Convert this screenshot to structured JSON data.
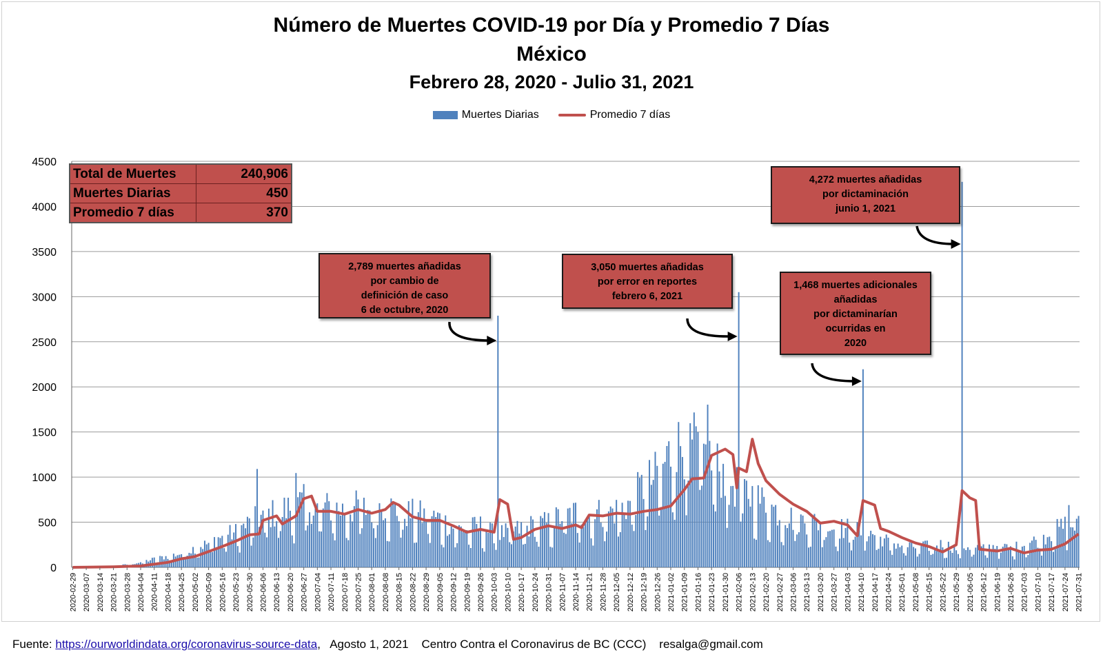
{
  "title": {
    "line1": "Número de Muertes COVID-19 por Día y Promedio 7 Días",
    "line2": "México",
    "line3": "Febrero 28, 2020 - Julio 31, 2021"
  },
  "legend": {
    "bars": "Muertes Diarias",
    "line": "Promedio 7 días"
  },
  "summary": {
    "rows": [
      {
        "label": "Total de Muertes",
        "value": "240,906"
      },
      {
        "label": "Muertes Diarias",
        "value": "450"
      },
      {
        "label": "Promedio 7 días",
        "value": "370"
      }
    ]
  },
  "annotations": {
    "oct": "2,789 muertes  añadidas\npor cambio de\ndefinición de caso\n6 de octubre, 2020",
    "feb": "3,050 muertes  añadidas\npor error en reportes\nfebrero  6, 2021",
    "apr": "1,468  muertes adicionales\nañadidas\npor dictaminarían\nocurridas en\n2020",
    "jun": "4,272  muertes añadidas\npor dictaminación\njunio 1, 2021"
  },
  "footer": {
    "prefix": "Fuente: ",
    "link": "https://ourworldindata.org/coronavirus-source-data",
    "rest": ",   Agosto 1, 2021    Centro Contra el Coronavirus de BC (CCC)    resalga@gmail.com"
  },
  "colors": {
    "bars": "#4f81bd",
    "line": "#c0504d",
    "grid": "#9a9a9a",
    "boxes": "#c0504d"
  },
  "chart_data": {
    "type": "bar",
    "title": "Número de Muertes COVID-19 por Día y Promedio 7 Días",
    "start_date": "2020-02-29",
    "end_date": "2021-07-31",
    "ylim": [
      0,
      4500
    ],
    "yticks": [
      0,
      500,
      1000,
      1500,
      2000,
      2500,
      3000,
      3500,
      4000,
      4500
    ],
    "grid": true,
    "legend_position": "top",
    "x_tick_labels": [
      "2020-02-29",
      "2020-03-07",
      "2020-03-14",
      "2020-03-21",
      "2020-03-28",
      "2020-04-04",
      "2020-04-11",
      "2020-04-18",
      "2020-04-25",
      "2020-05-02",
      "2020-05-09",
      "2020-05-16",
      "2020-05-23",
      "2020-05-30",
      "2020-06-06",
      "2020-06-13",
      "2020-06-20",
      "2020-06-27",
      "2020-07-04",
      "2020-07-11",
      "2020-07-18",
      "2020-07-25",
      "2020-08-01",
      "2020-08-08",
      "2020-08-15",
      "2020-08-22",
      "2020-08-29",
      "2020-09-05",
      "2020-09-12",
      "2020-09-19",
      "2020-09-26",
      "2020-10-03",
      "2020-10-10",
      "2020-10-17",
      "2020-10-24",
      "2020-10-31",
      "2020-11-07",
      "2020-11-14",
      "2020-11-21",
      "2020-11-28",
      "2020-12-05",
      "2020-12-12",
      "2020-12-19",
      "2020-12-26",
      "2021-01-02",
      "2021-01-09",
      "2021-01-16",
      "2021-01-23",
      "2021-01-30",
      "2021-02-06",
      "2021-02-13",
      "2021-02-20",
      "2021-02-27",
      "2021-03-06",
      "2021-03-13",
      "2021-03-20",
      "2021-03-27",
      "2021-04-03",
      "2021-04-10",
      "2021-04-17",
      "2021-04-24",
      "2021-05-01",
      "2021-05-08",
      "2021-05-15",
      "2021-05-22",
      "2021-05-29",
      "2021-06-05",
      "2021-06-12",
      "2021-06-19",
      "2021-06-26",
      "2021-07-03",
      "2021-07-10",
      "2021-07-17",
      "2021-07-24",
      "2021-07-31"
    ],
    "series": [
      {
        "name": "Muertes Diarias",
        "kind": "bar",
        "approximate_weekly_level": [
          0,
          2,
          5,
          15,
          30,
          55,
          90,
          120,
          150,
          210,
          260,
          340,
          380,
          480,
          560,
          590,
          650,
          700,
          640,
          650,
          620,
          660,
          620,
          680,
          600,
          580,
          560,
          530,
          430,
          420,
          450,
          360,
          380,
          420,
          460,
          480,
          560,
          590,
          570,
          600,
          620,
          700,
          880,
          1000,
          1250,
          1350,
          1300,
          1150,
          1000,
          850,
          780,
          690,
          590,
          530,
          500,
          480,
          430,
          420,
          380,
          360,
          280,
          240,
          220,
          230,
          250,
          210,
          230,
          200,
          240,
          200,
          250,
          300,
          380,
          450
        ],
        "spikes": [
          {
            "date": "2020-06-03",
            "value": 1090
          },
          {
            "date": "2020-06-23",
            "value": 1045
          },
          {
            "date": "2020-10-05",
            "value": 2789
          },
          {
            "date": "2021-01-21",
            "value": 1803
          },
          {
            "date": "2021-02-06",
            "value": 3050
          },
          {
            "date": "2021-04-11",
            "value": 2195
          },
          {
            "date": "2021-06-01",
            "value": 4272
          },
          {
            "date": "2021-07-26",
            "value": 690
          }
        ]
      },
      {
        "name": "Promedio 7 días",
        "kind": "line",
        "points": [
          [
            "2020-02-29",
            0
          ],
          [
            "2020-03-21",
            5
          ],
          [
            "2020-04-04",
            15
          ],
          [
            "2020-04-18",
            55
          ],
          [
            "2020-04-25",
            95
          ],
          [
            "2020-05-02",
            120
          ],
          [
            "2020-05-09",
            175
          ],
          [
            "2020-05-16",
            230
          ],
          [
            "2020-05-23",
            290
          ],
          [
            "2020-05-30",
            360
          ],
          [
            "2020-06-04",
            370
          ],
          [
            "2020-06-06",
            520
          ],
          [
            "2020-06-13",
            570
          ],
          [
            "2020-06-16",
            480
          ],
          [
            "2020-06-23",
            570
          ],
          [
            "2020-06-27",
            760
          ],
          [
            "2020-07-01",
            790
          ],
          [
            "2020-07-04",
            620
          ],
          [
            "2020-07-11",
            620
          ],
          [
            "2020-07-18",
            590
          ],
          [
            "2020-07-25",
            640
          ],
          [
            "2020-08-01",
            600
          ],
          [
            "2020-08-08",
            640
          ],
          [
            "2020-08-12",
            720
          ],
          [
            "2020-08-15",
            690
          ],
          [
            "2020-08-22",
            560
          ],
          [
            "2020-08-29",
            520
          ],
          [
            "2020-09-05",
            520
          ],
          [
            "2020-09-12",
            460
          ],
          [
            "2020-09-19",
            390
          ],
          [
            "2020-09-26",
            420
          ],
          [
            "2020-10-03",
            390
          ],
          [
            "2020-10-06",
            750
          ],
          [
            "2020-10-10",
            700
          ],
          [
            "2020-10-13",
            310
          ],
          [
            "2020-10-17",
            330
          ],
          [
            "2020-10-24",
            420
          ],
          [
            "2020-10-31",
            460
          ],
          [
            "2020-11-07",
            430
          ],
          [
            "2020-11-14",
            470
          ],
          [
            "2020-11-17",
            440
          ],
          [
            "2020-11-21",
            580
          ],
          [
            "2020-11-28",
            570
          ],
          [
            "2020-12-05",
            600
          ],
          [
            "2020-12-12",
            590
          ],
          [
            "2020-12-19",
            620
          ],
          [
            "2020-12-26",
            640
          ],
          [
            "2021-01-02",
            680
          ],
          [
            "2021-01-09",
            860
          ],
          [
            "2021-01-13",
            980
          ],
          [
            "2021-01-19",
            990
          ],
          [
            "2021-01-23",
            1240
          ],
          [
            "2021-01-30",
            1310
          ],
          [
            "2021-02-03",
            1250
          ],
          [
            "2021-02-05",
            880
          ],
          [
            "2021-02-06",
            1100
          ],
          [
            "2021-02-10",
            1060
          ],
          [
            "2021-02-13",
            1420
          ],
          [
            "2021-02-16",
            1150
          ],
          [
            "2021-02-20",
            960
          ],
          [
            "2021-02-27",
            810
          ],
          [
            "2021-03-06",
            700
          ],
          [
            "2021-03-13",
            620
          ],
          [
            "2021-03-20",
            490
          ],
          [
            "2021-03-27",
            510
          ],
          [
            "2021-04-03",
            470
          ],
          [
            "2021-04-08",
            350
          ],
          [
            "2021-04-11",
            740
          ],
          [
            "2021-04-17",
            690
          ],
          [
            "2021-04-20",
            430
          ],
          [
            "2021-04-24",
            400
          ],
          [
            "2021-05-01",
            330
          ],
          [
            "2021-05-08",
            270
          ],
          [
            "2021-05-15",
            230
          ],
          [
            "2021-05-22",
            170
          ],
          [
            "2021-05-29",
            250
          ],
          [
            "2021-06-01",
            850
          ],
          [
            "2021-06-05",
            770
          ],
          [
            "2021-06-08",
            740
          ],
          [
            "2021-06-10",
            200
          ],
          [
            "2021-06-19",
            180
          ],
          [
            "2021-06-26",
            210
          ],
          [
            "2021-07-03",
            160
          ],
          [
            "2021-07-10",
            190
          ],
          [
            "2021-07-17",
            200
          ],
          [
            "2021-07-24",
            260
          ],
          [
            "2021-07-31",
            370
          ]
        ]
      }
    ]
  }
}
